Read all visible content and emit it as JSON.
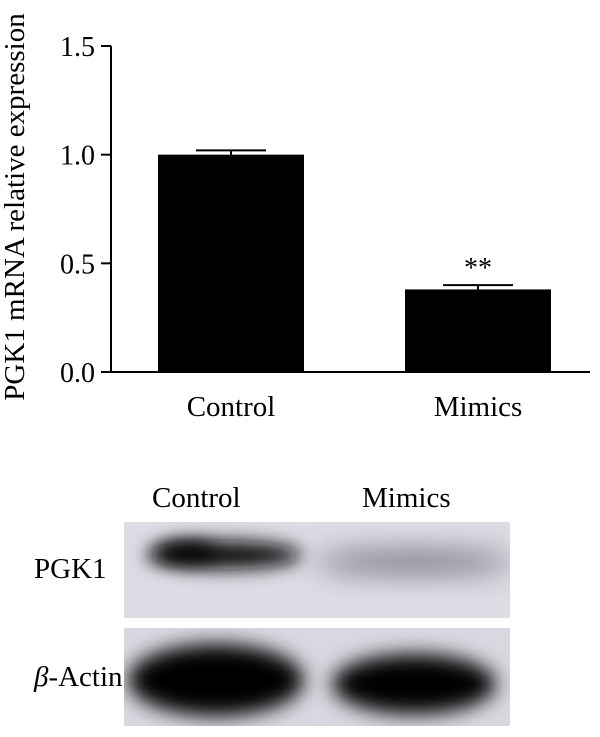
{
  "chart_data": {
    "type": "bar",
    "categories": [
      "Control",
      "Mimics"
    ],
    "series": [
      {
        "values": [
          1.0,
          0.38
        ],
        "error": [
          0.02,
          0.02
        ]
      }
    ],
    "ylabel": "PGK1 mRNA relative expression",
    "ylim": [
      0,
      1.5
    ],
    "yticks": [
      "0.0",
      "0.5",
      "1.0",
      "1.5"
    ],
    "annotations": [
      {
        "category": "Mimics",
        "text": "**"
      }
    ],
    "colors": {
      "bar": "#000000"
    }
  },
  "blot": {
    "lanes": [
      "Control",
      "Mimics"
    ],
    "rows": [
      {
        "label": "PGK1",
        "band_intensity": [
          1.0,
          0.38
        ]
      },
      {
        "label_symbol": "β",
        "label_rest": "-Actin",
        "band_intensity": [
          1.0,
          1.0
        ]
      }
    ],
    "colors": {
      "background": "#dcdce4",
      "band": "#0a0a0a"
    }
  }
}
